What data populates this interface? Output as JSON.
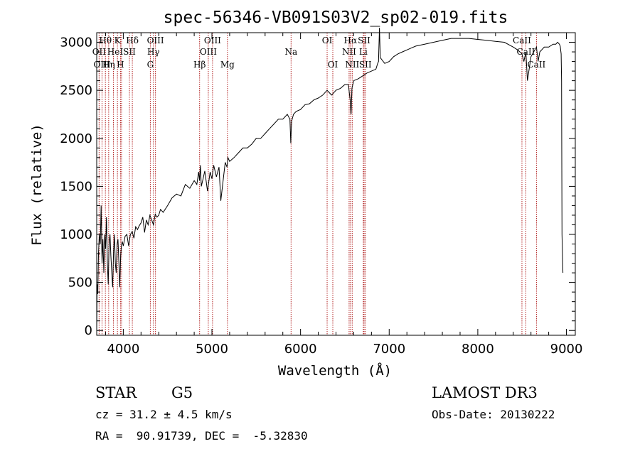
{
  "chart_data": {
    "type": "line",
    "title": "spec-56346-VB091S03V2_sp02-019.fits",
    "xlabel": "Wavelength (Å)",
    "ylabel": "Flux (relative)",
    "xlim": [
      3700,
      9100
    ],
    "ylim": [
      -50,
      3100
    ],
    "x_ticks": [
      4000,
      5000,
      6000,
      7000,
      8000,
      9000
    ],
    "y_ticks": [
      0,
      500,
      1000,
      1500,
      2000,
      2500,
      3000
    ],
    "grid": false,
    "line_color": "#000000",
    "marker_color": "#b22222",
    "series": [
      {
        "name": "flux",
        "x": [
          3700,
          3705,
          3712,
          3720,
          3730,
          3740,
          3750,
          3760,
          3770,
          3780,
          3790,
          3800,
          3810,
          3820,
          3830,
          3840,
          3850,
          3860,
          3870,
          3880,
          3890,
          3900,
          3910,
          3920,
          3930,
          3940,
          3950,
          3960,
          3970,
          3980,
          3990,
          4000,
          4020,
          4040,
          4060,
          4080,
          4100,
          4120,
          4140,
          4160,
          4180,
          4200,
          4220,
          4240,
          4260,
          4280,
          4300,
          4320,
          4340,
          4360,
          4380,
          4400,
          4420,
          4450,
          4500,
          4550,
          4600,
          4650,
          4700,
          4750,
          4800,
          4830,
          4850,
          4860,
          4870,
          4880,
          4900,
          4920,
          4950,
          4980,
          5000,
          5020,
          5050,
          5080,
          5100,
          5150,
          5170,
          5180,
          5190,
          5200,
          5250,
          5300,
          5350,
          5400,
          5450,
          5500,
          5550,
          5600,
          5650,
          5700,
          5750,
          5800,
          5850,
          5880,
          5890,
          5895,
          5900,
          5920,
          5950,
          6000,
          6050,
          6100,
          6150,
          6200,
          6250,
          6300,
          6350,
          6400,
          6450,
          6500,
          6540,
          6560,
          6570,
          6580,
          6600,
          6650,
          6700,
          6750,
          6800,
          6850,
          6870,
          6880,
          6890,
          6900,
          6950,
          7000,
          7050,
          7100,
          7150,
          7200,
          7250,
          7300,
          7400,
          7500,
          7600,
          7700,
          7800,
          7900,
          8000,
          8100,
          8200,
          8300,
          8400,
          8450,
          8498,
          8520,
          8542,
          8560,
          8600,
          8662,
          8680,
          8700,
          8750,
          8800,
          8850,
          8880,
          8900,
          8920,
          8930,
          8940,
          8945,
          8950,
          8960
        ],
        "values": [
          0,
          480,
          380,
          800,
          1000,
          900,
          1300,
          700,
          950,
          600,
          1000,
          850,
          1180,
          700,
          480,
          900,
          1000,
          780,
          600,
          450,
          820,
          1000,
          700,
          600,
          900,
          950,
          700,
          450,
          780,
          900,
          920,
          880,
          980,
          1000,
          880,
          1000,
          1030,
          960,
          1080,
          1050,
          1090,
          1120,
          1180,
          1020,
          1150,
          1100,
          1200,
          1150,
          1100,
          1210,
          1180,
          1200,
          1260,
          1230,
          1300,
          1380,
          1420,
          1400,
          1520,
          1480,
          1560,
          1520,
          1650,
          1560,
          1720,
          1500,
          1580,
          1660,
          1450,
          1650,
          1580,
          1720,
          1600,
          1700,
          1350,
          1750,
          1700,
          1800,
          1780,
          1760,
          1800,
          1850,
          1900,
          1900,
          1940,
          2000,
          2000,
          2050,
          2100,
          2150,
          2200,
          2200,
          2250,
          2200,
          1950,
          2100,
          2180,
          2250,
          2280,
          2300,
          2350,
          2360,
          2400,
          2420,
          2450,
          2500,
          2450,
          2500,
          2520,
          2560,
          2560,
          2400,
          2250,
          2520,
          2600,
          2620,
          2650,
          2680,
          2700,
          2720,
          2780,
          2800,
          3150,
          2840,
          2780,
          2800,
          2850,
          2880,
          2900,
          2920,
          2940,
          2960,
          2980,
          3000,
          3020,
          3040,
          3040,
          3040,
          3030,
          3020,
          3010,
          3000,
          2950,
          2920,
          2880,
          2800,
          2900,
          2600,
          2850,
          2950,
          2800,
          2900,
          2950,
          2950,
          2980,
          2980,
          3000,
          2980,
          2960,
          2880,
          2600,
          1000,
          600
        ]
      }
    ],
    "spectral_lines": [
      {
        "label": "Hθ",
        "x": 3798,
        "row": 1
      },
      {
        "label": "OII",
        "x": 3727,
        "row": 2
      },
      {
        "label": "OIII",
        "x": 3760,
        "row": 3
      },
      {
        "label": "Hη",
        "x": 3835,
        "row": 3
      },
      {
        "label": "He",
        "x": 3889,
        "row": 2
      },
      {
        "label": "K",
        "x": 3934,
        "row": 1
      },
      {
        "label": "H",
        "x": 3968,
        "row": 3
      },
      {
        "label": "I",
        "x": 3980,
        "row": 2
      },
      {
        "label": "SII",
        "x": 4069,
        "row": 2
      },
      {
        "label": "Hδ",
        "x": 4102,
        "row": 1
      },
      {
        "label": "OIII",
        "x": 4363,
        "row": 1
      },
      {
        "label": "Hγ",
        "x": 4340,
        "row": 2
      },
      {
        "label": "G",
        "x": 4305,
        "row": 3
      },
      {
        "label": "Hβ",
        "x": 4861,
        "row": 3
      },
      {
        "label": "OIII",
        "x": 5007,
        "row": 1
      },
      {
        "label": "OIII",
        "x": 4959,
        "row": 2
      },
      {
        "label": "Mg",
        "x": 5175,
        "row": 3
      },
      {
        "label": "Na",
        "x": 5893,
        "row": 2
      },
      {
        "label": "OI",
        "x": 6300,
        "row": 1
      },
      {
        "label": "OI",
        "x": 6364,
        "row": 3
      },
      {
        "label": "Hα",
        "x": 6563,
        "row": 1
      },
      {
        "label": "SII",
        "x": 6717,
        "row": 1
      },
      {
        "label": "NII",
        "x": 6548,
        "row": 2
      },
      {
        "label": "Li",
        "x": 6708,
        "row": 2
      },
      {
        "label": "NII",
        "x": 6583,
        "row": 3
      },
      {
        "label": "SII",
        "x": 6731,
        "row": 3
      },
      {
        "label": "CaII",
        "x": 8498,
        "row": 1
      },
      {
        "label": "CaII",
        "x": 8542,
        "row": 2
      },
      {
        "label": "CaII",
        "x": 8662,
        "row": 3
      }
    ]
  },
  "info": {
    "object_class": "STAR",
    "subclass": "G5",
    "survey": "LAMOST DR3",
    "cz": "cz = 31.2 ± 4.5 km/s",
    "obs_date": "Obs-Date: 20130222",
    "coords": "RA =  90.91739, DEC =  -5.32830"
  }
}
